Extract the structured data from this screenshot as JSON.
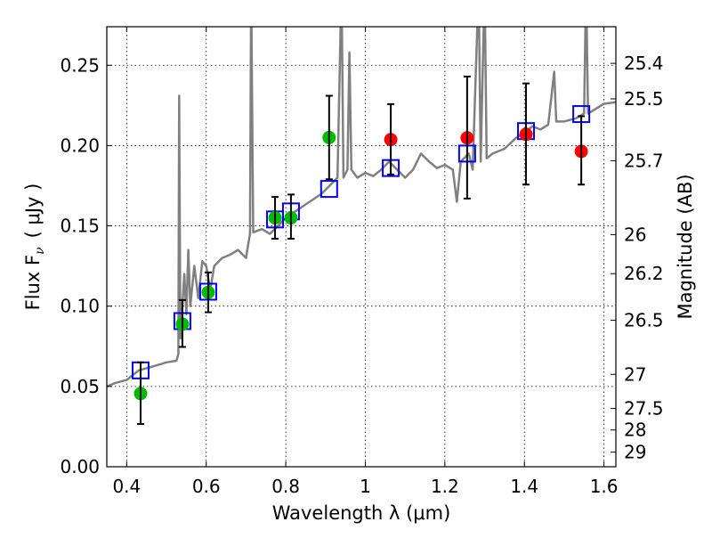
{
  "chart_data": {
    "type": "scatter",
    "xlabel": "Wavelength  λ (μm)",
    "ylabel": "Flux  F",
    "ylabel_sub": "ν",
    "ylabel_unit": "( μJy )",
    "y2label": "Magnitude (AB)",
    "xlim": [
      0.35,
      1.63
    ],
    "ylim": [
      0,
      0.274
    ],
    "grid": true,
    "xticks": [
      0.4,
      0.6,
      0.8,
      1.0,
      1.2,
      1.4,
      1.6
    ],
    "xtick_labels": [
      "0.4",
      "0.6",
      "0.8",
      "1",
      "1.2",
      "1.4",
      "1.6"
    ],
    "yticks": [
      0,
      0.05,
      0.1,
      0.15,
      0.2,
      0.25
    ],
    "ytick_labels": [
      "0.00",
      "0.05",
      "0.10",
      "0.15",
      "0.20",
      "0.25"
    ],
    "y2ticks": [
      25.4,
      25.5,
      25.7,
      26,
      26.2,
      26.5,
      27,
      27.5,
      28,
      29
    ],
    "y2tick_labels": [
      "25.4",
      "25.5",
      "25.7",
      "26",
      "26.2",
      "26.5",
      "27",
      "27.5",
      "28",
      "29"
    ],
    "colors": {
      "spectrum": "#808080",
      "green": "#00bb00",
      "red": "#ff0000",
      "model": "#0000ff",
      "error": "#000000"
    },
    "spectrum": {
      "x": [
        0.35,
        0.37,
        0.4,
        0.43,
        0.46,
        0.5,
        0.525,
        0.53,
        0.532,
        0.535,
        0.545,
        0.55,
        0.555,
        0.56,
        0.57,
        0.58,
        0.59,
        0.6,
        0.61,
        0.62,
        0.64,
        0.66,
        0.68,
        0.7,
        0.71,
        0.713,
        0.718,
        0.74,
        0.76,
        0.78,
        0.8,
        0.83,
        0.86,
        0.89,
        0.91,
        0.93,
        0.94,
        0.945,
        0.955,
        0.96,
        0.965,
        0.98,
        1.0,
        1.02,
        1.04,
        1.06,
        1.08,
        1.1,
        1.12,
        1.14,
        1.16,
        1.18,
        1.2,
        1.22,
        1.23,
        1.24,
        1.26,
        1.27,
        1.285,
        1.29,
        1.3,
        1.305,
        1.32,
        1.35,
        1.38,
        1.4,
        1.42,
        1.44,
        1.46,
        1.475,
        1.48,
        1.5,
        1.53,
        1.55,
        1.555,
        1.56,
        1.58,
        1.6,
        1.63
      ],
      "y": [
        0.05,
        0.052,
        0.054,
        0.06,
        0.062,
        0.065,
        0.066,
        0.07,
        0.231,
        0.08,
        0.12,
        0.095,
        0.135,
        0.1,
        0.125,
        0.105,
        0.128,
        0.125,
        0.11,
        0.125,
        0.13,
        0.132,
        0.135,
        0.13,
        0.145,
        0.3,
        0.146,
        0.148,
        0.145,
        0.15,
        0.155,
        0.16,
        0.165,
        0.17,
        0.175,
        0.18,
        0.3,
        0.18,
        0.185,
        0.258,
        0.185,
        0.18,
        0.183,
        0.181,
        0.185,
        0.19,
        0.185,
        0.18,
        0.185,
        0.195,
        0.19,
        0.186,
        0.188,
        0.185,
        0.165,
        0.19,
        0.195,
        0.185,
        0.3,
        0.19,
        0.3,
        0.192,
        0.195,
        0.198,
        0.205,
        0.208,
        0.212,
        0.21,
        0.213,
        0.246,
        0.215,
        0.215,
        0.217,
        0.22,
        0.3,
        0.22,
        0.223,
        0.226,
        0.227
      ]
    },
    "points": [
      {
        "x": 0.435,
        "y": 0.0456,
        "err_lo": 0.0266,
        "err_hi": 0.065,
        "model": 0.06,
        "color": "green"
      },
      {
        "x": 0.54,
        "y": 0.0888,
        "err_lo": 0.0746,
        "err_hi": 0.1038,
        "model": 0.0907,
        "color": "green"
      },
      {
        "x": 0.605,
        "y": 0.1086,
        "err_lo": 0.0962,
        "err_hi": 0.121,
        "model": 0.109,
        "color": "green"
      },
      {
        "x": 0.773,
        "y": 0.155,
        "err_lo": 0.142,
        "err_hi": 0.168,
        "model": 0.154,
        "color": "green"
      },
      {
        "x": 0.813,
        "y": 0.155,
        "err_lo": 0.142,
        "err_hi": 0.1695,
        "model": 0.159,
        "color": "green"
      },
      {
        "x": 0.909,
        "y": 0.205,
        "err_lo": 0.179,
        "err_hi": 0.231,
        "model": 0.173,
        "color": "green"
      },
      {
        "x": 1.064,
        "y": 0.2037,
        "err_lo": 0.182,
        "err_hi": 0.2258,
        "model": 0.186,
        "color": "red"
      },
      {
        "x": 1.256,
        "y": 0.2048,
        "err_lo": 0.167,
        "err_hi": 0.243,
        "model": 0.195,
        "color": "red"
      },
      {
        "x": 1.404,
        "y": 0.207,
        "err_lo": 0.1757,
        "err_hi": 0.2387,
        "model": 0.209,
        "color": "red"
      },
      {
        "x": 1.543,
        "y": 0.1964,
        "err_lo": 0.1757,
        "err_hi": 0.2183,
        "model": 0.2196,
        "color": "red"
      }
    ]
  }
}
